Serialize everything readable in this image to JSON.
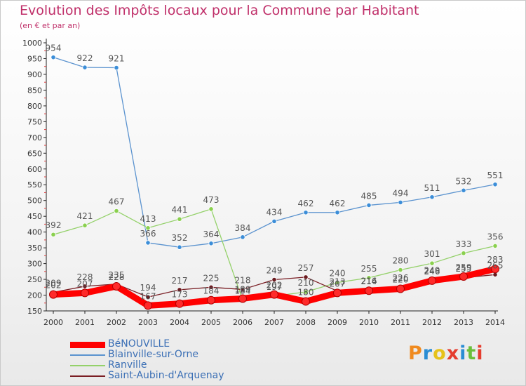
{
  "title": "Evolution des Impôts locaux pour la Commune par Habitant",
  "subtitle": "(en € et par an)",
  "brand": {
    "letters": [
      "P",
      "r",
      "o",
      "x",
      "i",
      "t",
      "i"
    ],
    "colors": [
      "#f08a1e",
      "#2a8dd4",
      "#e6c21a",
      "#e53d2e",
      "#2a8dd4",
      "#6bbf3a",
      "#e53d2e"
    ]
  },
  "chart_data": {
    "type": "line",
    "title": "Evolution des Impôts locaux pour la Commune par Habitant",
    "subtitle": "(en € et par an)",
    "xlabel": "",
    "ylabel": "",
    "x": [
      "2000",
      "2001",
      "2002",
      "2003",
      "2004",
      "2005",
      "2006",
      "2007",
      "2008",
      "2009",
      "2010",
      "2011",
      "2012",
      "2013",
      "2014"
    ],
    "ylim": [
      150,
      1000
    ],
    "yticks": [
      150,
      200,
      250,
      300,
      350,
      400,
      450,
      500,
      550,
      600,
      650,
      700,
      750,
      800,
      850,
      900,
      950,
      1000
    ],
    "grid": false,
    "legend_position": "bottom-left",
    "series": [
      {
        "name": "BéNOUVILLE",
        "color": "#ff0000",
        "marker_color": "#ff2a2a",
        "width": 9,
        "values": [
          202,
          207,
          228,
          167,
          173,
          184,
          189,
          202,
          180,
          207,
          214,
          220,
          246,
          259,
          283
        ],
        "labels": [
          "202",
          "207",
          "228",
          "167",
          "173",
          "184",
          "189",
          "202",
          "180",
          "207",
          "214",
          "220",
          "246",
          "259",
          "283"
        ]
      },
      {
        "name": "Blainville-sur-Orne",
        "color": "#5b93cf",
        "marker_color": "#3c8ed8",
        "width": 1.3,
        "values": [
          954,
          922,
          921,
          366,
          352,
          364,
          384,
          434,
          462,
          462,
          485,
          494,
          511,
          532,
          551
        ],
        "labels": [
          "954",
          "922",
          "921",
          "366",
          "352",
          "364",
          "384",
          "434",
          "462",
          "462",
          "485",
          "494",
          "511",
          "532",
          "551"
        ]
      },
      {
        "name": "Ranville",
        "color": "#94d16a",
        "marker_color": "#8ad04e",
        "width": 1.3,
        "values": [
          392,
          421,
          467,
          413,
          441,
          473,
          184,
          197,
          210,
          240,
          255,
          280,
          301,
          333,
          356
        ],
        "labels": [
          "392",
          "421",
          "467",
          "413",
          "441",
          "473",
          "184",
          "197",
          "210",
          "240",
          "255",
          "280",
          "301",
          "333",
          "356"
        ]
      },
      {
        "name": "Saint-Aubin-d'Arquenay",
        "color": "#7a1e24",
        "marker_color": "#6a1a1f",
        "width": 1.3,
        "values": [
          209,
          228,
          235,
          194,
          217,
          225,
          218,
          249,
          257,
          213,
          216,
          226,
          249,
          255,
          265
        ],
        "labels": [
          "209",
          "228",
          "235",
          "194",
          "217",
          "225",
          "218",
          "249",
          "257",
          "213",
          "216",
          "226",
          "249",
          "255",
          "265"
        ]
      }
    ]
  }
}
